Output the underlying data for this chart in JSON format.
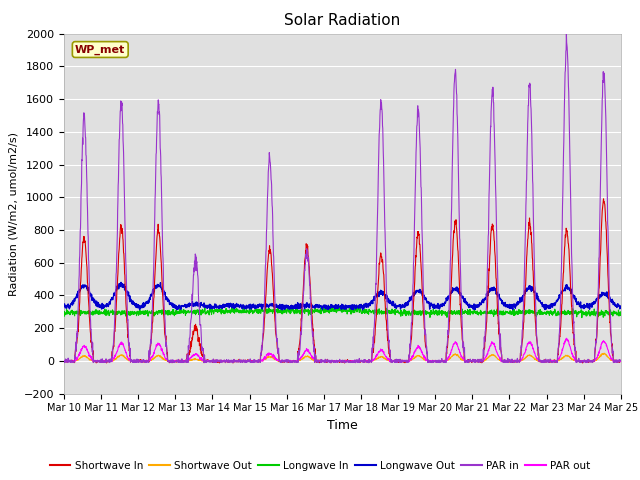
{
  "title": "Solar Radiation",
  "ylabel": "Radiation (W/m2, umol/m2/s)",
  "xlabel": "Time",
  "xtick_labels": [
    "Mar 10",
    "Mar 11",
    "Mar 12",
    "Mar 13",
    "Mar 14",
    "Mar 15",
    "Mar 16",
    "Mar 17",
    "Mar 18",
    "Mar 19",
    "Mar 20",
    "Mar 21",
    "Mar 22",
    "Mar 23",
    "Mar 24",
    "Mar 25"
  ],
  "ylim": [
    -200,
    2000
  ],
  "yticks": [
    -200,
    0,
    200,
    400,
    600,
    800,
    1000,
    1200,
    1400,
    1600,
    1800,
    2000
  ],
  "bg_color": "#e0e0e0",
  "fig_color": "#ffffff",
  "label_box_text": "WP_met",
  "label_box_facecolor": "#ffffcc",
  "label_box_edgecolor": "#999900",
  "label_box_textcolor": "#880000",
  "colors": {
    "shortwave_in": "#dd0000",
    "shortwave_out": "#ffaa00",
    "longwave_in": "#00cc00",
    "longwave_out": "#0000cc",
    "par_in": "#9933cc",
    "par_out": "#ff00ff"
  },
  "legend_labels": [
    "Shortwave In",
    "Shortwave Out",
    "Longwave In",
    "Longwave Out",
    "PAR in",
    "PAR out"
  ],
  "n_days": 15,
  "points_per_day": 144,
  "shortwave_in_peaks": [
    750,
    820,
    800,
    200,
    0,
    680,
    700,
    0,
    650,
    780,
    850,
    830,
    840,
    800,
    980
  ],
  "shortwave_out_peaks": [
    30,
    35,
    32,
    10,
    0,
    25,
    28,
    0,
    25,
    32,
    40,
    38,
    35,
    32,
    45
  ],
  "longwave_base": 320,
  "longwave_out_base": 330,
  "longwave_out_peaks": [
    460,
    470,
    460,
    350,
    340,
    340,
    340,
    330,
    420,
    430,
    440,
    440,
    450,
    450,
    410
  ],
  "par_in_peaks": [
    1500,
    1580,
    1570,
    620,
    0,
    1240,
    680,
    0,
    1580,
    1530,
    1760,
    1650,
    1680,
    1940,
    1760
  ],
  "par_out_peaks": [
    90,
    110,
    105,
    40,
    0,
    45,
    65,
    0,
    65,
    85,
    110,
    110,
    115,
    130,
    120
  ],
  "longwave_in_values": [
    295,
    295,
    295,
    300,
    305,
    305,
    305,
    310,
    300,
    295,
    295,
    295,
    295,
    295,
    290
  ]
}
